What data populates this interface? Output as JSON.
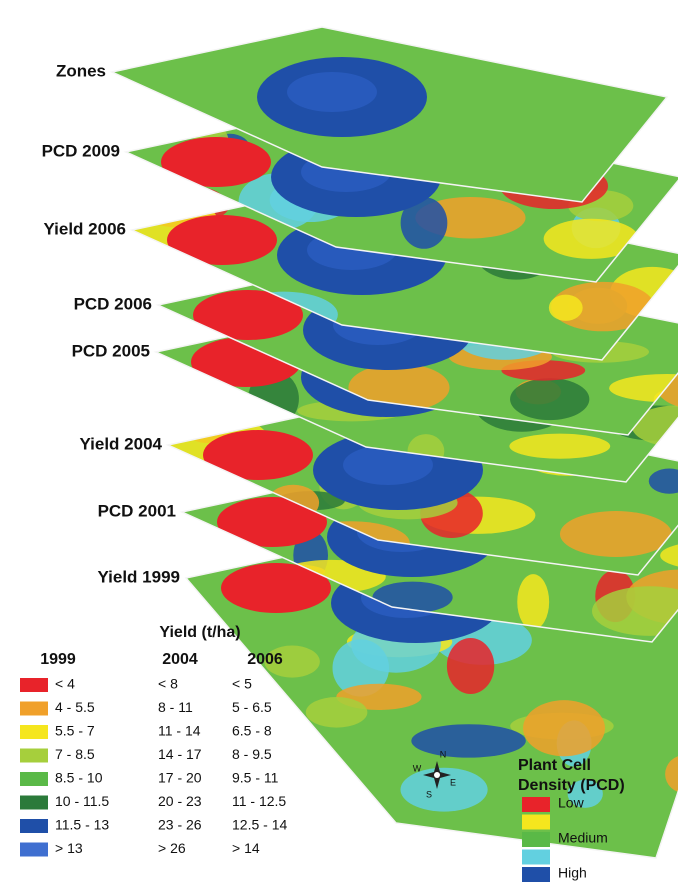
{
  "layers": [
    {
      "label": "Zones"
    },
    {
      "label": "PCD 2009"
    },
    {
      "label": "Yield 2006"
    },
    {
      "label": "PCD 2006"
    },
    {
      "label": "PCD 2005"
    },
    {
      "label": "Yield 2004"
    },
    {
      "label": "PCD 2001"
    },
    {
      "label": "Yield 1999"
    }
  ],
  "yield_legend": {
    "title": "Yield (t/ha)",
    "years": [
      "1999",
      "2004",
      "2006"
    ],
    "rows": [
      {
        "color": "#e8232a",
        "ranges": [
          "< 4",
          "< 8",
          "< 5"
        ]
      },
      {
        "color": "#f0a02a",
        "ranges": [
          "4 - 5.5",
          "8 - 11",
          "5 - 6.5"
        ]
      },
      {
        "color": "#f5e61e",
        "ranges": [
          "5.5 - 7",
          "11 - 14",
          "6.5 - 8"
        ]
      },
      {
        "color": "#a6cf3c",
        "ranges": [
          "7 - 8.5",
          "14 - 17",
          "8 - 9.5"
        ]
      },
      {
        "color": "#5ab947",
        "ranges": [
          "8.5 - 10",
          "17 - 20",
          "9.5 - 11"
        ]
      },
      {
        "color": "#2b7a3a",
        "ranges": [
          "10 - 11.5",
          "20 - 23",
          "11 - 12.5"
        ]
      },
      {
        "color": "#1f4fa8",
        "ranges": [
          "11.5 - 13",
          "23 - 26",
          "12.5 - 14"
        ]
      },
      {
        "color": "#3f6fd0",
        "ranges": [
          "> 13",
          "> 26",
          "> 14"
        ]
      }
    ]
  },
  "pcd_legend": {
    "title_lines": [
      "Plant Cell",
      "Density (PCD)"
    ],
    "entries": [
      {
        "color": "#e8232a",
        "label": "Low"
      },
      {
        "color": "#f5e61e"
      },
      {
        "color": "#5ab947",
        "label": "Medium"
      },
      {
        "color": "#62d0e0"
      },
      {
        "color": "#1f4fa8",
        "label": "High"
      }
    ]
  },
  "compass": {
    "n": "N",
    "e": "E",
    "s": "S",
    "w": "W"
  }
}
